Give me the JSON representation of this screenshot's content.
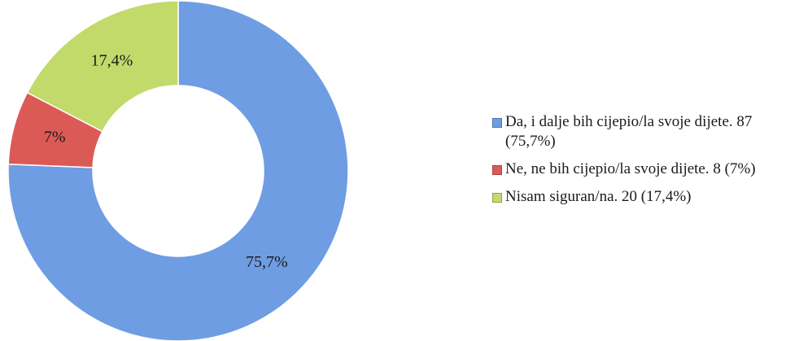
{
  "chart_data": {
    "type": "donut",
    "categories": [
      "Da, i dalje bih cijepio/la svoje dijete. 87 (75,7%)",
      "Ne, ne bih cijepio/la svoje dijete. 8 (7%)",
      "Nisam siguran/na. 20 (17,4%)"
    ],
    "values": [
      75.7,
      7,
      17.4
    ],
    "value_labels": [
      "75,7%",
      "7%",
      "17,4%"
    ],
    "colors": [
      "#6f9de3",
      "#dc5a56",
      "#c2da6a"
    ],
    "legend": "right"
  }
}
